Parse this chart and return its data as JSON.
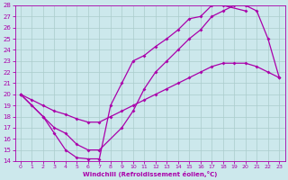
{
  "xlabel": "Windchill (Refroidissement éolien,°C)",
  "bg_color": "#cce8ec",
  "grid_color": "#aacccc",
  "line_color": "#aa00aa",
  "xlim": [
    -0.5,
    23.5
  ],
  "ylim": [
    14,
    28
  ],
  "xticks": [
    0,
    1,
    2,
    3,
    4,
    5,
    6,
    7,
    8,
    9,
    10,
    11,
    12,
    13,
    14,
    15,
    16,
    17,
    18,
    19,
    20,
    21,
    22,
    23
  ],
  "yticks": [
    14,
    15,
    16,
    17,
    18,
    19,
    20,
    21,
    22,
    23,
    24,
    25,
    26,
    27,
    28
  ],
  "line1_x": [
    0,
    1,
    2,
    3,
    4,
    5,
    6,
    7,
    8,
    9,
    10,
    11,
    12,
    13,
    14,
    15,
    16,
    17,
    18,
    20
  ],
  "line1_y": [
    20,
    19,
    18,
    16.5,
    15,
    14.3,
    14.2,
    14.2,
    19,
    21,
    23,
    23.5,
    24.3,
    25,
    25.8,
    26.8,
    27,
    28,
    28,
    27.5
  ],
  "line2_x": [
    0,
    1,
    2,
    3,
    4,
    5,
    6,
    7,
    8,
    9,
    10,
    11,
    12,
    13,
    14,
    15,
    16,
    17,
    18,
    19,
    20,
    21,
    22,
    23
  ],
  "line2_y": [
    20,
    19.5,
    19,
    18.5,
    18.2,
    17.8,
    17.5,
    17.5,
    18,
    18.5,
    19,
    19.5,
    20,
    20.5,
    21,
    21.5,
    22,
    22.5,
    22.8,
    22.8,
    22.8,
    22.5,
    22,
    21.5
  ],
  "line3_x": [
    0,
    2,
    3,
    4,
    5,
    6,
    7,
    9,
    10,
    11,
    12,
    13,
    14,
    15,
    16,
    17,
    18,
    19,
    20,
    21,
    22,
    23
  ],
  "line3_y": [
    20,
    18,
    17,
    16.5,
    15.5,
    15,
    15,
    17,
    18.5,
    20.5,
    22,
    23,
    24,
    25,
    25.8,
    27,
    27.5,
    28,
    28,
    27.5,
    25,
    21.5
  ],
  "marker": "D",
  "markersize": 2.0,
  "linewidth": 0.9
}
